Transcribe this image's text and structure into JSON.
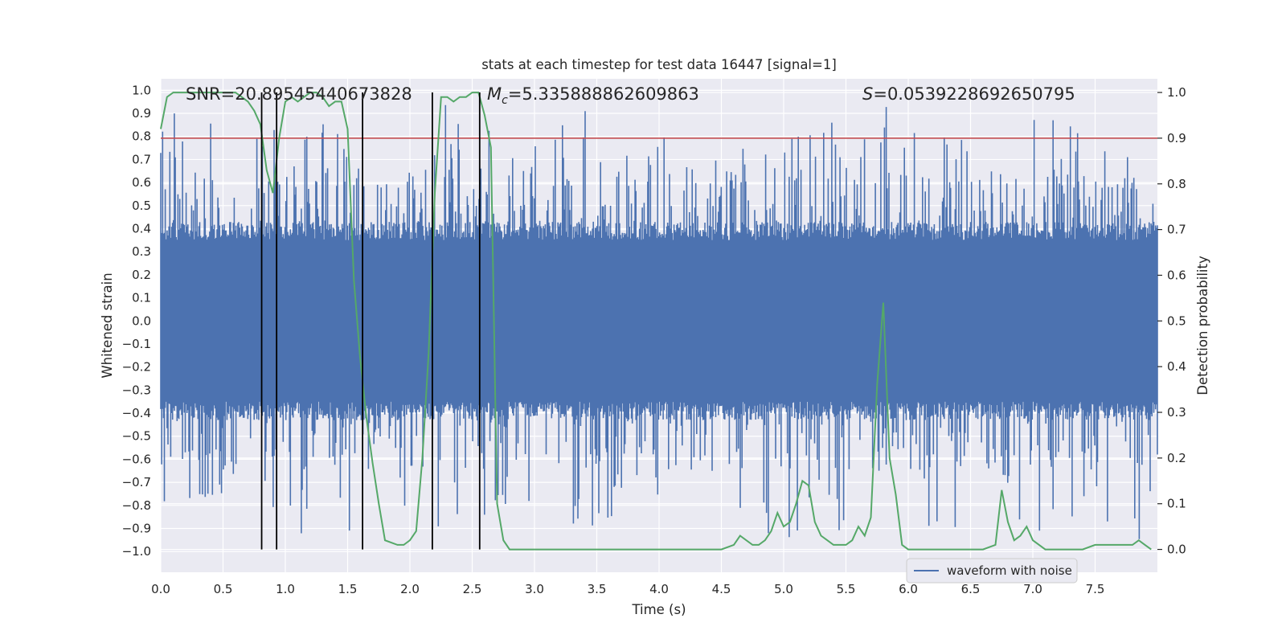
{
  "chart_data": {
    "type": "line",
    "title": "stats at each timestep for test data 16447 [signal=1]",
    "xlabel": "Time (s)",
    "ylabel_left": "Whitened strain",
    "ylabel_right": "Detection probability",
    "xlim": [
      0,
      8
    ],
    "ylim_left": [
      -1.09,
      1.05
    ],
    "ylim_right": [
      -0.05,
      1.03
    ],
    "x_ticks": [
      0.0,
      0.5,
      1.0,
      1.5,
      2.0,
      2.5,
      3.0,
      3.5,
      4.0,
      4.5,
      5.0,
      5.5,
      6.0,
      6.5,
      7.0,
      7.5
    ],
    "x_tick_labels": [
      "0.0",
      "0.5",
      "1.0",
      "1.5",
      "2.0",
      "2.5",
      "3.0",
      "3.5",
      "4.0",
      "4.5",
      "5.0",
      "5.5",
      "6.0",
      "6.5",
      "7.0",
      "7.5"
    ],
    "y_left_ticks": [
      1.0,
      0.9,
      0.8,
      0.7,
      0.6,
      0.5,
      0.4,
      0.3,
      0.2,
      0.1,
      0.0,
      -0.1,
      -0.2,
      -0.3,
      -0.4,
      -0.5,
      -0.6,
      -0.7,
      -0.8,
      -0.9,
      -1.0
    ],
    "y_left_tick_labels": [
      "1.0",
      "0.9",
      "0.8",
      "0.7",
      "0.6",
      "0.5",
      "0.4",
      "0.3",
      "0.2",
      "0.1",
      "0.0",
      "−0.1",
      "−0.2",
      "−0.3",
      "−0.4",
      "−0.5",
      "−0.6",
      "−0.7",
      "−0.8",
      "−0.9",
      "−1.0"
    ],
    "y_right_ticks": [
      1.0,
      0.9,
      0.8,
      0.7,
      0.6,
      0.5,
      0.4,
      0.3,
      0.2,
      0.1,
      0.0
    ],
    "y_right_tick_labels": [
      "1.0",
      "0.9",
      "0.8",
      "0.7",
      "0.6",
      "0.5",
      "0.4",
      "0.3",
      "0.2",
      "0.1",
      "0.0"
    ],
    "annotations": {
      "snr": "SNR=20.89545440673828",
      "mc_symbol": "M",
      "mc_sub": "c",
      "mc_value": "=5.335888862609863",
      "s_symbol": "S",
      "s_value": "=0.0539228692650795"
    },
    "legend": {
      "label": "waveform with noise",
      "placement": "lower-right"
    },
    "threshold": 0.9,
    "vlines": [
      0.81,
      0.93,
      1.62,
      2.18,
      2.56
    ],
    "vline_range": [
      0,
      1.0
    ],
    "waveform": {
      "name": "waveform with noise",
      "color": "#4c72b0",
      "n_samples": 1100,
      "core_amplitude": 0.35,
      "spike_max": 0.96
    },
    "detection_probability": {
      "name": "Detection probability",
      "color": "#55a868",
      "x": [
        0.0,
        0.05,
        0.1,
        0.15,
        0.2,
        0.3,
        0.4,
        0.5,
        0.6,
        0.65,
        0.7,
        0.75,
        0.8,
        0.85,
        0.9,
        0.95,
        1.0,
        1.05,
        1.1,
        1.15,
        1.2,
        1.25,
        1.3,
        1.35,
        1.4,
        1.45,
        1.5,
        1.55,
        1.6,
        1.65,
        1.7,
        1.75,
        1.8,
        1.9,
        1.95,
        2.0,
        2.05,
        2.1,
        2.15,
        2.2,
        2.25,
        2.3,
        2.35,
        2.4,
        2.45,
        2.5,
        2.55,
        2.6,
        2.65,
        2.7,
        2.75,
        2.8,
        2.9,
        3.0,
        3.5,
        4.0,
        4.2,
        4.35,
        4.5,
        4.6,
        4.65,
        4.7,
        4.75,
        4.8,
        4.85,
        4.9,
        4.95,
        5.0,
        5.05,
        5.1,
        5.15,
        5.2,
        5.25,
        5.3,
        5.35,
        5.4,
        5.45,
        5.5,
        5.55,
        5.6,
        5.65,
        5.7,
        5.75,
        5.8,
        5.85,
        5.9,
        5.95,
        6.0,
        6.05,
        6.1,
        6.2,
        6.4,
        6.6,
        6.7,
        6.75,
        6.8,
        6.85,
        6.9,
        6.95,
        7.0,
        7.05,
        7.1,
        7.2,
        7.3,
        7.4,
        7.5,
        7.6,
        7.65,
        7.7,
        7.75,
        7.8,
        7.85,
        7.9,
        7.95
      ],
      "y": [
        0.92,
        0.99,
        1.0,
        1.0,
        1.0,
        1.0,
        1.0,
        1.0,
        1.0,
        0.99,
        0.98,
        0.96,
        0.93,
        0.83,
        0.78,
        0.9,
        0.98,
        0.99,
        0.98,
        0.99,
        1.0,
        1.0,
        0.99,
        0.97,
        0.98,
        0.98,
        0.92,
        0.59,
        0.42,
        0.29,
        0.19,
        0.1,
        0.02,
        0.01,
        0.01,
        0.02,
        0.04,
        0.2,
        0.43,
        0.78,
        0.99,
        0.99,
        0.98,
        0.99,
        0.99,
        1.0,
        1.0,
        0.95,
        0.88,
        0.1,
        0.02,
        0.0,
        0.0,
        0.0,
        0.0,
        0.0,
        0.0,
        0.0,
        0.0,
        0.01,
        0.03,
        0.02,
        0.01,
        0.01,
        0.02,
        0.04,
        0.08,
        0.05,
        0.06,
        0.1,
        0.15,
        0.14,
        0.06,
        0.03,
        0.02,
        0.01,
        0.01,
        0.01,
        0.02,
        0.05,
        0.03,
        0.07,
        0.36,
        0.54,
        0.2,
        0.12,
        0.01,
        0.0,
        0.0,
        0.0,
        0.0,
        0.0,
        0.0,
        0.01,
        0.13,
        0.06,
        0.02,
        0.03,
        0.05,
        0.02,
        0.01,
        0.0,
        0.0,
        0.0,
        0.0,
        0.01,
        0.01,
        0.01,
        0.01,
        0.01,
        0.01,
        0.02,
        0.01,
        0.0
      ]
    },
    "colors": {
      "plot_bg": "#eaeaf2",
      "grid": "#ffffff",
      "text": "#262626",
      "waveform": "#4c72b0",
      "probability": "#55a868",
      "threshold": "#c44e52",
      "vline": "#000000"
    }
  }
}
